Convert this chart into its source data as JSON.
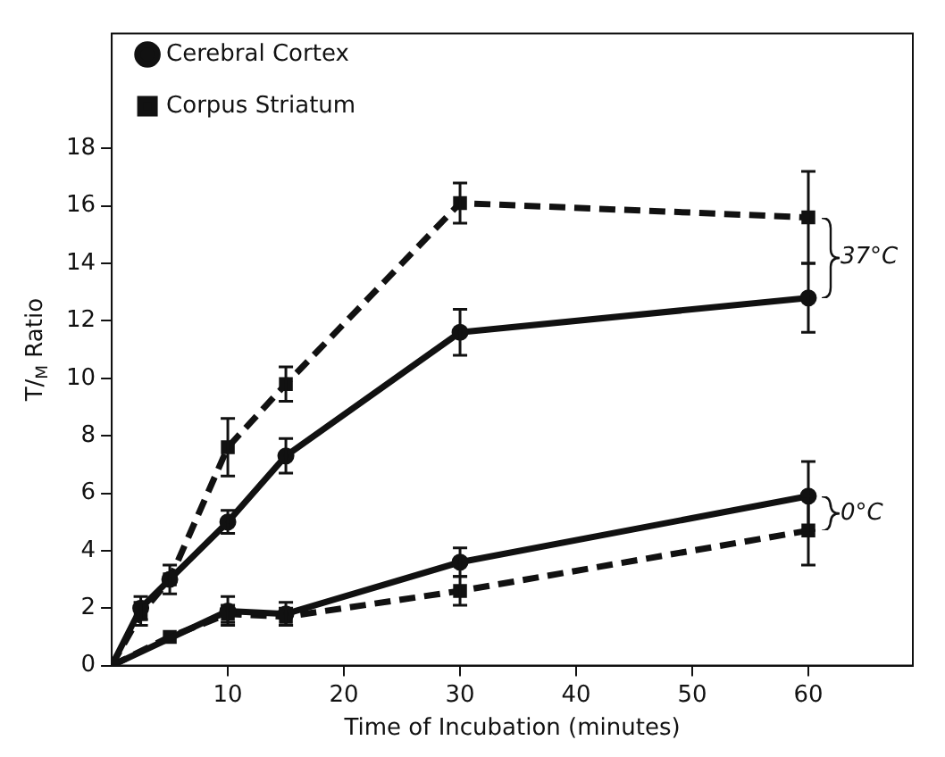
{
  "chart_data": {
    "type": "line",
    "xlabel": "Time of Incubation (minutes)",
    "ylabel": "T/$_{M}$ Ratio",
    "xlim": [
      0,
      69
    ],
    "xticks": [
      10,
      20,
      30,
      40,
      50,
      60
    ],
    "ylim": [
      0,
      22
    ],
    "yticks": [
      0,
      2,
      4,
      6,
      8,
      10,
      12,
      14,
      16,
      18
    ],
    "grid": false,
    "legend": "top left",
    "series": [
      {
        "name": "Cerebral Cortex",
        "color": "#111111",
        "marker": "circle",
        "line_style": "solid",
        "x": [
          0,
          2.5,
          5,
          10,
          15,
          30,
          60
        ],
        "values": [
          0,
          2,
          3,
          5,
          7.3,
          11.6,
          12.8
        ],
        "errors": [
          null,
          0.4,
          0.5,
          0.4,
          0.6,
          0.8,
          1.2
        ]
      },
      {
        "name": "Corpus Striatum",
        "color": "#111111",
        "marker": "square",
        "line_style": "dashed",
        "x": [
          0,
          2.5,
          5,
          10,
          15,
          30,
          60
        ],
        "values": [
          0,
          1.8,
          3,
          7.6,
          9.8,
          16.1,
          15.6
        ],
        "errors": [
          null,
          0.4,
          null,
          1,
          0.6,
          0.7,
          1.6
        ]
      },
      {
        "color": "#111111",
        "marker": "circle",
        "line_style": "solid",
        "x": [
          0,
          10,
          15,
          30,
          60
        ],
        "values": [
          0,
          1.9,
          1.8,
          3.6,
          5.9
        ],
        "errors": [
          null,
          0.5,
          0.4,
          0.5,
          1.2
        ]
      },
      {
        "color": "#111111",
        "marker": "square",
        "line_style": "dashed",
        "x": [
          0,
          5,
          10,
          15,
          30,
          60
        ],
        "values": [
          0,
          1,
          1.8,
          1.7,
          2.6,
          4.7
        ],
        "errors": [
          null,
          null,
          0.3,
          0.3,
          0.5,
          1.2
        ]
      }
    ],
    "annotations": [
      {
        "text": "37°C",
        "x": 60,
        "y": 14.2
      },
      {
        "text": "0°C",
        "x": 60,
        "y": 5.3
      }
    ]
  }
}
